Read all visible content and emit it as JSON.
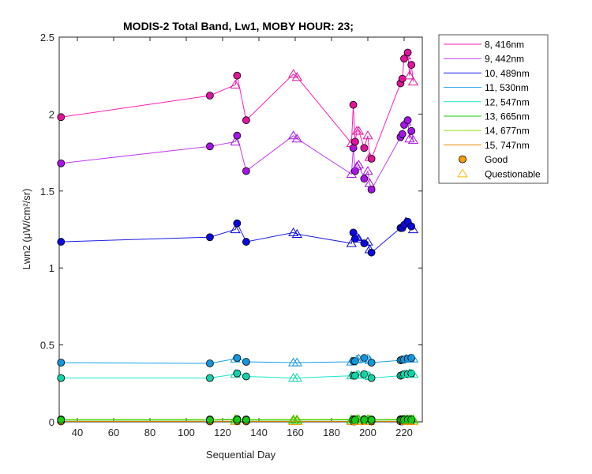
{
  "chart_data": {
    "type": "line",
    "title": "MODIS-2 Total Band, Lw1, MOBY HOUR: 23;",
    "xlabel": "Sequential Day",
    "ylabel": "Lwn2 (μW/cm²/sr)",
    "xlim": [
      30,
      230
    ],
    "ylim": [
      0,
      2.5
    ],
    "xticks": [
      40,
      60,
      80,
      100,
      120,
      140,
      160,
      180,
      200,
      220
    ],
    "yticks": [
      0,
      0.5,
      1,
      1.5,
      2,
      2.5
    ],
    "xtick_labels": [
      "40",
      "60",
      "80",
      "100",
      "120",
      "140",
      "160",
      "180",
      "200",
      "220"
    ],
    "ytick_labels": [
      "0",
      "0.5",
      "1",
      "1.5",
      "2",
      "2.5"
    ],
    "grid": false,
    "legend_position": "outside-top-right",
    "x": [
      31,
      113,
      127,
      128,
      133,
      159,
      161,
      191,
      192,
      193,
      194,
      195,
      198,
      200,
      201,
      202,
      218,
      219,
      220,
      221,
      222,
      223,
      224,
      225
    ],
    "quality": [
      "G",
      "G",
      "Q",
      "G",
      "G",
      "Q",
      "Q",
      "Q",
      "G",
      "G",
      "Q",
      "Q",
      "G",
      "Q",
      "Q",
      "G",
      "G",
      "G",
      "G",
      "Q",
      "G",
      "Q",
      "G",
      "Q"
    ],
    "series": [
      {
        "name": "8, 416nm",
        "color": "#ff1fb4",
        "marker_color": "#e0149b",
        "values": [
          1.98,
          2.12,
          2.19,
          2.25,
          1.96,
          2.26,
          2.24,
          1.81,
          2.06,
          1.82,
          1.89,
          1.89,
          1.78,
          1.86,
          1.72,
          1.71,
          2.2,
          2.23,
          2.36,
          2.38,
          2.4,
          2.25,
          2.32,
          2.21
        ]
      },
      {
        "name": "9, 442nm",
        "color": "#c23cf0",
        "marker_color": "#a514e6",
        "values": [
          1.68,
          1.79,
          1.82,
          1.86,
          1.63,
          1.86,
          1.84,
          1.61,
          1.78,
          1.63,
          1.66,
          1.67,
          1.58,
          1.63,
          1.55,
          1.51,
          1.85,
          1.87,
          1.93,
          1.95,
          1.96,
          1.84,
          1.89,
          1.83
        ]
      },
      {
        "name": "10, 489nm",
        "color": "#1a1ae6",
        "marker_color": "#0a0adc",
        "values": [
          1.17,
          1.2,
          1.25,
          1.29,
          1.17,
          1.23,
          1.22,
          1.16,
          1.23,
          1.19,
          1.2,
          1.19,
          1.16,
          1.17,
          1.12,
          1.1,
          1.26,
          1.26,
          1.28,
          1.3,
          1.3,
          1.29,
          1.27,
          1.25
        ]
      },
      {
        "name": "11, 530nm",
        "color": "#1aa0e6",
        "marker_color": "#1496dc",
        "values": [
          0.385,
          0.38,
          0.41,
          0.415,
          0.39,
          0.385,
          0.385,
          0.39,
          0.395,
          0.395,
          0.405,
          0.41,
          0.415,
          0.41,
          0.4,
          0.385,
          0.4,
          0.405,
          0.405,
          0.41,
          0.41,
          0.41,
          0.415,
          0.41
        ]
      },
      {
        "name": "12, 547nm",
        "color": "#1ae6c8",
        "marker_color": "#14d2a8",
        "values": [
          0.285,
          0.285,
          0.31,
          0.315,
          0.295,
          0.285,
          0.285,
          0.3,
          0.3,
          0.3,
          0.305,
          0.305,
          0.31,
          0.3,
          0.295,
          0.285,
          0.3,
          0.305,
          0.31,
          0.31,
          0.31,
          0.315,
          0.315,
          0.31
        ]
      },
      {
        "name": "13, 665nm",
        "color": "#19c819",
        "marker_color": "#19c819",
        "values": [
          0.012,
          0.012,
          0.014,
          0.014,
          0.012,
          0.012,
          0.012,
          0.013,
          0.013,
          0.013,
          0.014,
          0.014,
          0.014,
          0.013,
          0.013,
          0.012,
          0.013,
          0.013,
          0.014,
          0.014,
          0.014,
          0.014,
          0.014,
          0.014
        ]
      },
      {
        "name": "14, 677nm",
        "color": "#9be61a",
        "marker_color": "#9be61a",
        "values": [
          0.016,
          0.016,
          0.018,
          0.018,
          0.016,
          0.016,
          0.016,
          0.017,
          0.017,
          0.017,
          0.018,
          0.018,
          0.018,
          0.017,
          0.017,
          0.016,
          0.017,
          0.017,
          0.018,
          0.018,
          0.018,
          0.018,
          0.018,
          0.018
        ]
      },
      {
        "name": "15, 747nm",
        "color": "#e68a00",
        "marker_color": "#f5a000",
        "values": [
          0.003,
          0.003,
          0.004,
          0.004,
          0.003,
          0.003,
          0.003,
          0.003,
          0.003,
          0.003,
          0.004,
          0.004,
          0.004,
          0.003,
          0.003,
          0.003,
          0.003,
          0.003,
          0.004,
          0.004,
          0.004,
          0.004,
          0.004,
          0.004
        ]
      }
    ],
    "legend": {
      "good_label": "Good",
      "good_color": "#f5a000",
      "questionable_label": "Questionable",
      "questionable_color": "#f5b800"
    }
  }
}
